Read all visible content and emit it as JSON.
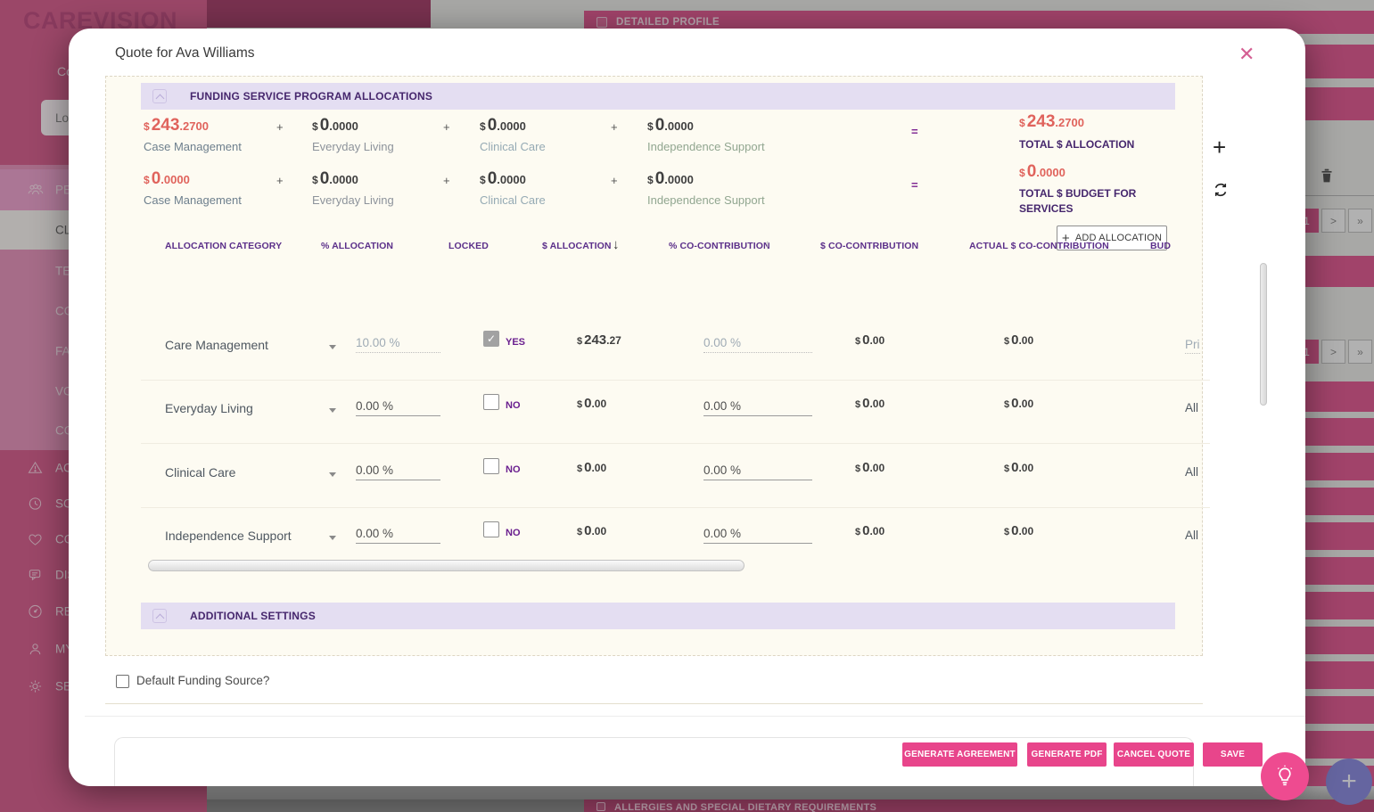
{
  "colors": {
    "accent_pink": "#e8458b",
    "header_purple": "#46276d",
    "amount_salmon": "#e0635c"
  },
  "background": {
    "logo": "CAREVISION",
    "welcome_text": "Co",
    "search_text": "Lookin",
    "sidebar_items": [
      {
        "label": "PE",
        "icon": "people-icon"
      },
      {
        "label": "CL",
        "icon": ""
      },
      {
        "label": "TE",
        "icon": ""
      },
      {
        "label": "CO",
        "icon": ""
      },
      {
        "label": "FA",
        "icon": ""
      },
      {
        "label": "VO",
        "icon": ""
      },
      {
        "label": "CO",
        "icon": ""
      },
      {
        "label": "AC",
        "icon": "warning-icon"
      },
      {
        "label": "SC",
        "icon": "history-icon"
      },
      {
        "label": "CO",
        "icon": "heart-icon"
      },
      {
        "label": "DIS",
        "icon": "chat-icon"
      },
      {
        "label": "RE",
        "icon": "gauge-icon"
      },
      {
        "label": "MY",
        "icon": "person-icon"
      },
      {
        "label": "SE",
        "icon": "gear-icon"
      }
    ],
    "top_bar_title": "DETAILED PROFILE",
    "bottom_bar_title": "ALLERGIES AND SPECIAL DIETARY REQUIREMENTS",
    "pagination": {
      "current": "1",
      "next": ">",
      "last": "»"
    }
  },
  "modal": {
    "title": "Quote for Ava Williams",
    "close_icon": "✕",
    "funding_section_title": "FUNDING SERVICE PROGRAM ALLOCATIONS",
    "additional_section_title": "ADDITIONAL SETTINGS",
    "operators": {
      "plus": "+",
      "equals": "="
    },
    "summary_rows": [
      {
        "cols": [
          {
            "amount": "243.2700",
            "label": "Case Management"
          },
          {
            "amount": "0.0000",
            "label": "Everyday Living"
          },
          {
            "amount": "0.0000",
            "label": "Clinical Care"
          },
          {
            "amount": "0.0000",
            "label": "Independence Support"
          }
        ],
        "total": {
          "amount": "243.2700",
          "label": "TOTAL $ ALLOCATION"
        }
      },
      {
        "cols": [
          {
            "amount": "0.0000",
            "label": "Case Management"
          },
          {
            "amount": "0.0000",
            "label": "Everyday Living"
          },
          {
            "amount": "0.0000",
            "label": "Clinical Care"
          },
          {
            "amount": "0.0000",
            "label": "Independence Support"
          }
        ],
        "total": {
          "amount": "0.0000",
          "label": "TOTAL $ BUDGET FOR SERVICES"
        }
      }
    ],
    "add_allocation_label": "ADD ALLOCATION",
    "table": {
      "headers": {
        "category": "ALLOCATION CATEGORY",
        "pct": "% ALLOCATION",
        "locked": "LOCKED",
        "alloc": "$ ALLOCATION",
        "pct_co": "% CO-CONTRIBUTION",
        "dol_co": "$ CO-CONTRIBUTION",
        "actual_co": "ACTUAL $ CO-CONTRIBUTION",
        "budget": "BUD"
      },
      "sort": {
        "alloc_dir": "↓",
        "pct_co_dir": "↑"
      },
      "rows": [
        {
          "category": "Care Management",
          "pct": "10.00 %",
          "locked_label": "YES",
          "alloc": "243.27",
          "pct_co": "0.00 %",
          "dol_co": "0.00",
          "actual_co": "0.00",
          "budget": "Pri"
        },
        {
          "category": "Everyday Living",
          "pct": "0.00 %",
          "locked_label": "NO",
          "alloc": "0.00",
          "pct_co": "0.00 %",
          "dol_co": "0.00",
          "actual_co": "0.00",
          "budget": "All"
        },
        {
          "category": "Clinical Care",
          "pct": "0.00 %",
          "locked_label": "NO",
          "alloc": "0.00",
          "pct_co": "0.00 %",
          "dol_co": "0.00",
          "actual_co": "0.00",
          "budget": "All"
        },
        {
          "category": "Independence Support",
          "pct": "0.00 %",
          "locked_label": "NO",
          "alloc": "0.00",
          "pct_co": "0.00 %",
          "dol_co": "0.00",
          "actual_co": "0.00",
          "budget": "All"
        }
      ]
    },
    "default_funding_label": "Default Funding Source?",
    "buttons": {
      "generate_agreement": "GENERATE AGREEMENT",
      "generate_pdf": "GENERATE PDF",
      "cancel_quote": "CANCEL QUOTE",
      "save": "SAVE"
    }
  }
}
